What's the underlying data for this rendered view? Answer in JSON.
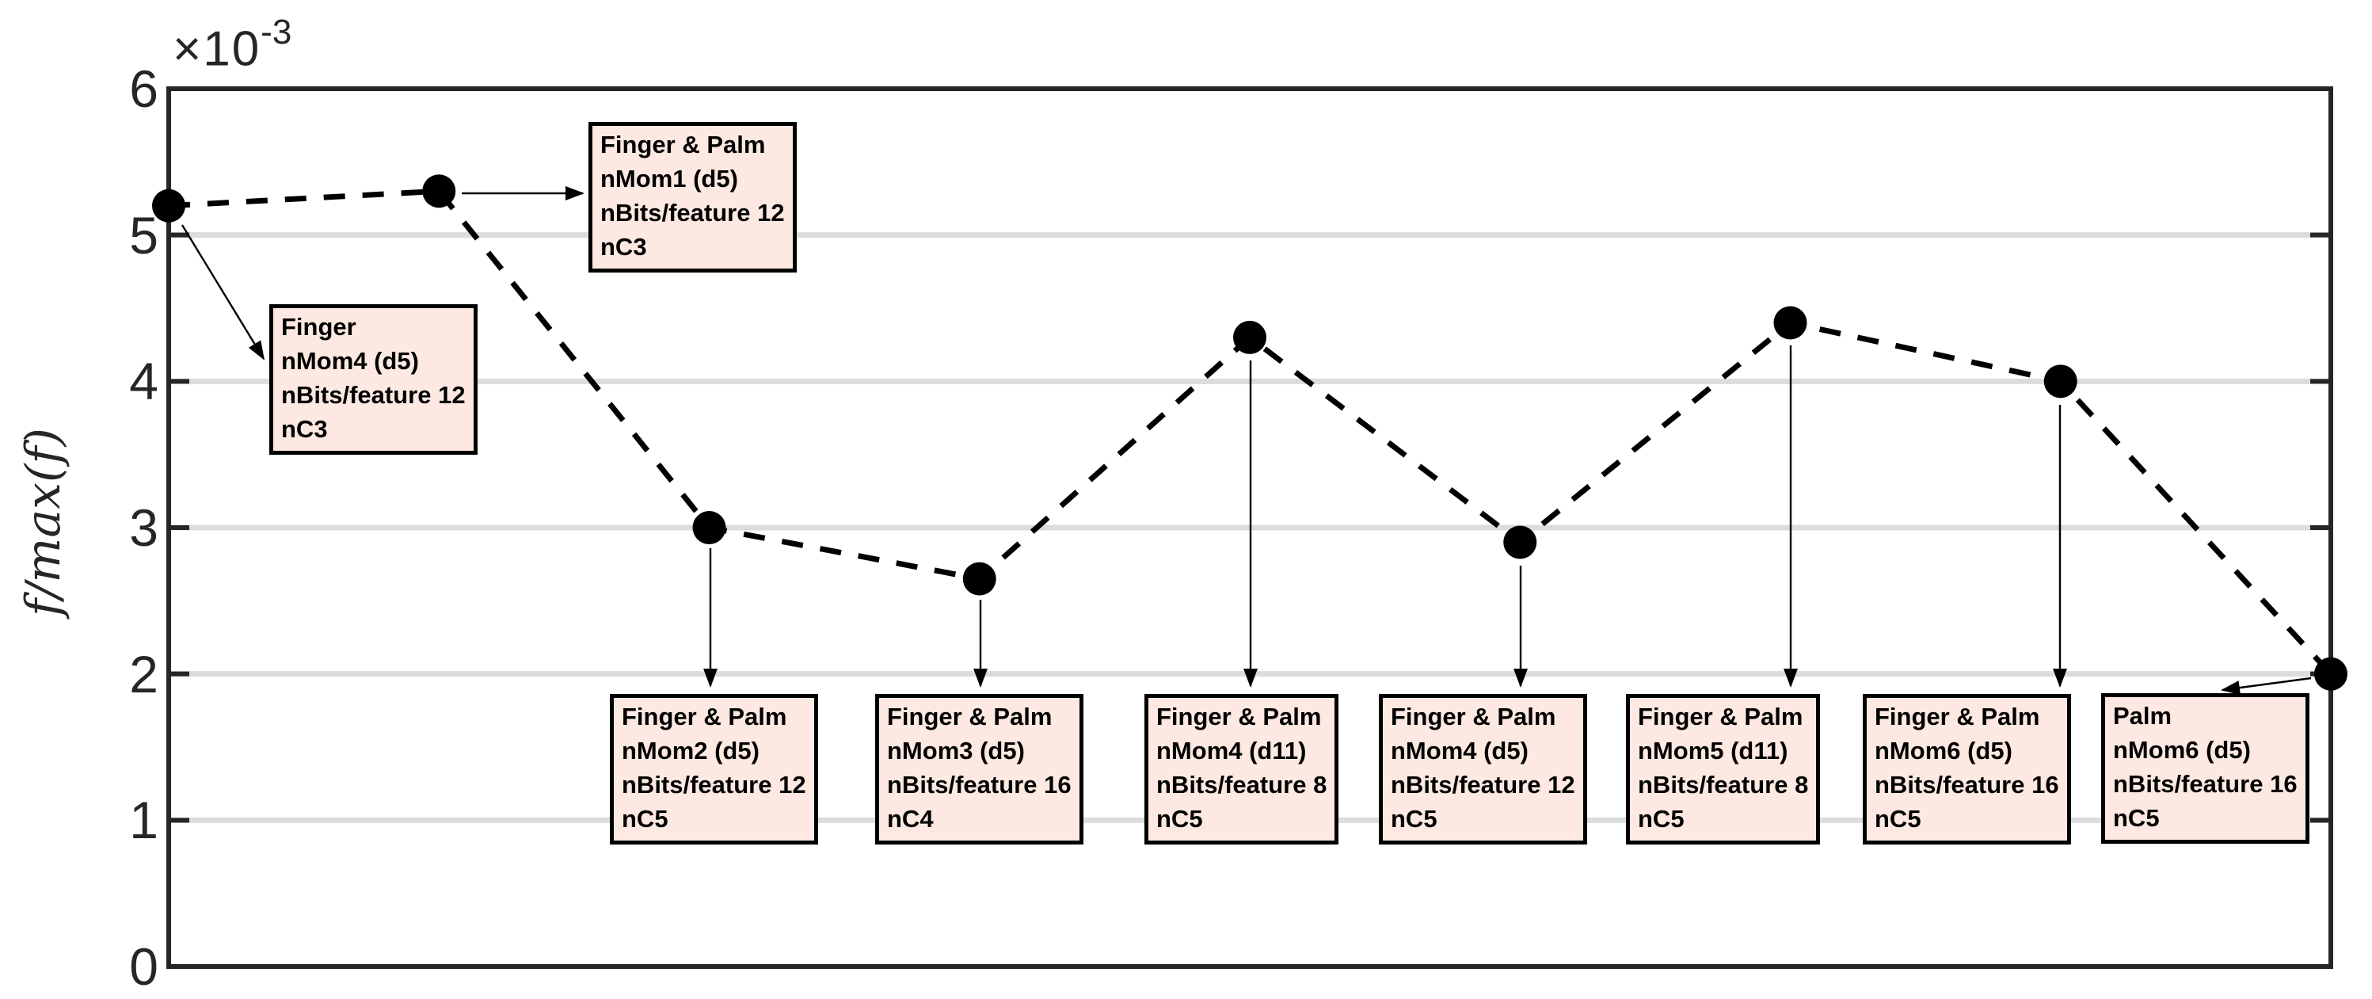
{
  "figure": {
    "ylabel": "f/max(f)",
    "y_axis_multiplier_base": "×10",
    "y_axis_multiplier_exp": "-3"
  },
  "chart_data": {
    "type": "line",
    "title": "",
    "xlabel": "",
    "ylabel": "f/max(f)",
    "x": [
      1,
      2,
      3,
      4,
      5,
      6,
      7,
      8,
      9
    ],
    "values_e3": [
      5.2,
      5.3,
      3.0,
      2.65,
      4.3,
      2.9,
      4.4,
      4.0,
      2.0
    ],
    "values": [
      0.0052,
      0.0053,
      0.003,
      0.00265,
      0.0043,
      0.0029,
      0.0044,
      0.004,
      0.002
    ],
    "ylim_e3": [
      0,
      6
    ],
    "y_ticks": [
      0,
      1,
      2,
      3,
      4,
      5,
      6
    ],
    "y_tick_labels": [
      "0",
      "1",
      "2",
      "3",
      "4",
      "5",
      "6"
    ],
    "y_unit": "1e-3",
    "x_tick_labels": [],
    "grid": "horizontal",
    "legend": "none",
    "line_style": "dashed",
    "marker": "filled-circle",
    "line_color": "#000000",
    "annotations": [
      {
        "point_index": 0,
        "lines": [
          "Finger",
          "nMom4 (d5)",
          "nBits/feature 12",
          "nC3"
        ]
      },
      {
        "point_index": 1,
        "lines": [
          "Finger & Palm",
          "nMom1 (d5)",
          "nBits/feature 12",
          "nC3"
        ]
      },
      {
        "point_index": 2,
        "lines": [
          "Finger & Palm",
          "nMom2 (d5)",
          "nBits/feature 12",
          "nC5"
        ]
      },
      {
        "point_index": 3,
        "lines": [
          "Finger & Palm",
          "nMom3 (d5)",
          "nBits/feature 16",
          "nC4"
        ]
      },
      {
        "point_index": 4,
        "lines": [
          "Finger & Palm",
          "nMom4 (d11)",
          "nBits/feature 8",
          "nC5"
        ]
      },
      {
        "point_index": 5,
        "lines": [
          "Finger & Palm",
          "nMom4 (d5)",
          "nBits/feature 12",
          "nC5"
        ]
      },
      {
        "point_index": 6,
        "lines": [
          "Finger & Palm",
          "nMom5 (d11)",
          "nBits/feature 8",
          "nC5"
        ]
      },
      {
        "point_index": 7,
        "lines": [
          "Finger & Palm",
          "nMom6 (d5)",
          "nBits/feature 16",
          "nC5"
        ]
      },
      {
        "point_index": 8,
        "lines": [
          "Palm",
          "nMom6 (d5)",
          "nBits/feature 16",
          "nC5"
        ]
      }
    ]
  },
  "colors": {
    "background": "#ffffff",
    "axis": "#262626",
    "grid": "#dcdcdc",
    "line": "#000000",
    "annotation_fill": "#fde9e1",
    "annotation_border": "#000000",
    "annotation_text": "#000000"
  }
}
